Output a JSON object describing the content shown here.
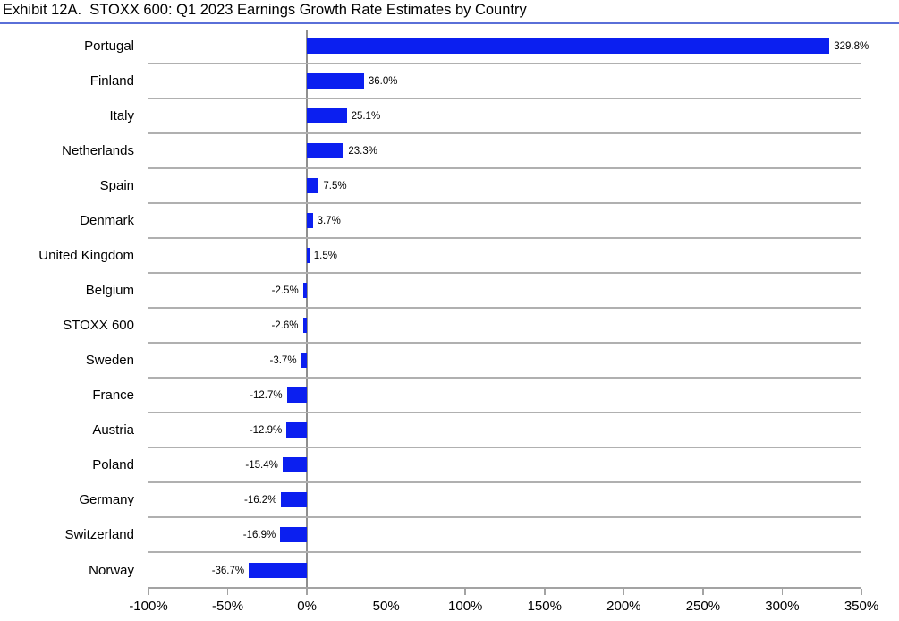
{
  "title": "Exhibit 12A.  STOXX 600: Q1 2023 Earnings Growth Rate Estimates by Country",
  "colors": {
    "bar": "#0b1ff0",
    "title_underline": "#5a6fd8",
    "row_separator": "#b0b0b0",
    "axis_line": "#a3a3a3",
    "zero_line": "#8f8f8f",
    "text": "#000000"
  },
  "chart_data": {
    "type": "bar",
    "orientation": "horizontal",
    "title": "Exhibit 12A.  STOXX 600: Q1 2023 Earnings Growth Rate Estimates by Country",
    "categories": [
      "Portugal",
      "Finland",
      "Italy",
      "Netherlands",
      "Spain",
      "Denmark",
      "United Kingdom",
      "Belgium",
      "STOXX 600",
      "Sweden",
      "France",
      "Austria",
      "Poland",
      "Germany",
      "Switzerland",
      "Norway"
    ],
    "values": [
      329.8,
      36.0,
      25.1,
      23.3,
      7.5,
      3.7,
      1.5,
      -2.5,
      -2.6,
      -3.7,
      -12.7,
      -12.9,
      -15.4,
      -16.2,
      -16.9,
      -36.7
    ],
    "labels": [
      "329.8%",
      "36.0%",
      "25.1%",
      "23.3%",
      "7.5%",
      "3.7%",
      "1.5%",
      "-2.5%",
      "-2.6%",
      "-3.7%",
      "-12.7%",
      "-12.9%",
      "-15.4%",
      "-16.2%",
      "-16.9%",
      "-36.7%"
    ],
    "xlabel": "",
    "ylabel": "",
    "xlim": [
      -100,
      350
    ],
    "x_tick_values": [
      -100,
      -50,
      0,
      50,
      100,
      150,
      200,
      250,
      300,
      350
    ],
    "x_ticks": [
      "-100%",
      "-50%",
      "0%",
      "50%",
      "100%",
      "150%",
      "200%",
      "250%",
      "300%",
      "350%"
    ],
    "grid": "horizontal row separators",
    "legend": "none"
  }
}
